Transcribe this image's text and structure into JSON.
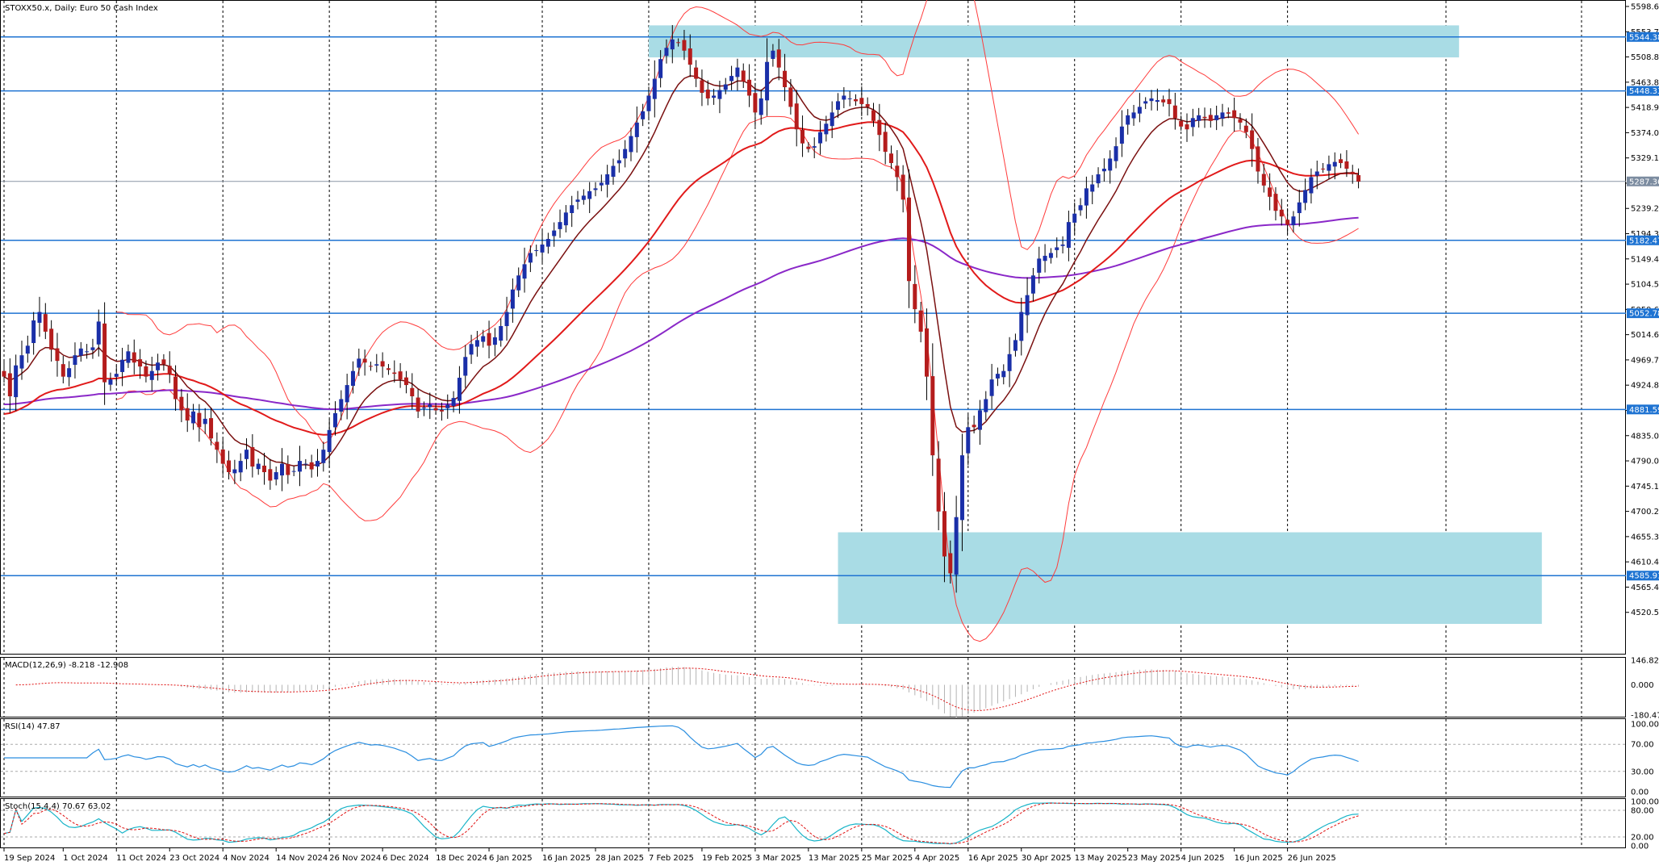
{
  "header": {
    "symbol": "STOXX50.x",
    "period": "Daily",
    "description": "Euro 50 Cash Index",
    "title": "STOXX50.x, Daily:  Euro 50 Cash Index"
  },
  "colors": {
    "bull": "#1a2fa8",
    "bear": "#b41c1c",
    "level_line": "#1e73d2",
    "zone": "#a9dce5",
    "ma_fast": "#7a1010",
    "ma_mid": "#e11a1a",
    "ma_slow": "#8a28c8",
    "bbands": "#ff3c3c",
    "macd_signal": "#e01010",
    "macd_hist": "#b4b4b4",
    "rsi": "#2a8ee0",
    "stoch_main": "#18b4c8",
    "stoch_signal": "#e01010"
  },
  "chart_data": [
    {
      "type": "candlestick",
      "title": "STOXX50.x, Daily:  Euro 50 Cash Index",
      "ylim": [
        4475.65,
        5598.65
      ],
      "y_ticks": [
        "5598.65",
        "5553.73",
        "5508.81",
        "5463.89",
        "5418.97",
        "5374.05",
        "5329.13",
        "5284.21",
        "5239.29",
        "5194.37",
        "5149.45",
        "5104.53",
        "5059.61",
        "5014.69",
        "4969.77",
        "4924.85",
        "4879.93",
        "4835.01",
        "4790.09",
        "4745.17",
        "4700.25",
        "4655.33",
        "4610.41",
        "4565.49",
        "4520.57"
      ],
      "x_labels": [
        "19 Sep 2024",
        "1 Oct 2024",
        "11 Oct 2024",
        "23 Oct 2024",
        "4 Nov 2024",
        "14 Nov 2024",
        "26 Nov 2024",
        "6 Dec 2024",
        "18 Dec 2024",
        "6 Jan 2025",
        "16 Jan 2025",
        "28 Jan 2025",
        "7 Feb 2025",
        "19 Feb 2025",
        "3 Mar 2025",
        "13 Mar 2025",
        "25 Mar 2025",
        "4 Apr 2025",
        "16 Apr 2025",
        "30 Apr 2025",
        "13 May 2025",
        "23 May 2025",
        "4 Jun 2025",
        "16 Jun 2025",
        "26 Jun 2025"
      ],
      "x_label_bars": [
        0,
        10,
        19,
        28,
        37,
        46,
        55,
        64,
        73,
        82,
        91,
        100,
        109,
        118,
        127,
        136,
        145,
        154,
        163,
        172,
        181,
        190,
        199,
        208,
        217
      ],
      "price_levels": [
        {
          "label": "5544.38",
          "value": 5544.38
        },
        {
          "label": "5448.33",
          "value": 5448.33
        },
        {
          "label": "5182.47",
          "value": 5182.47
        },
        {
          "label": "5052.78",
          "value": 5052.78
        },
        {
          "label": "4881.59",
          "value": 4881.59
        },
        {
          "label": "4585.91",
          "value": 4585.91
        }
      ],
      "current_price": {
        "label": "5287.36",
        "value": 5287.36
      },
      "zones": [
        {
          "from_bar": 109,
          "to_bar": 246,
          "from_price": 5508,
          "to_price": 5565
        },
        {
          "from_bar": 141,
          "to_bar": 260,
          "from_price": 4500,
          "to_price": 4663
        }
      ],
      "bollinger": {
        "period": 20,
        "deviations": 2
      },
      "moving_averages": [
        "fast",
        "mid",
        "slow"
      ],
      "close": [
        4940,
        4905,
        4960,
        4978,
        4995,
        5040,
        5055,
        5020,
        4988,
        4968,
        4940,
        4955,
        4978,
        4990,
        4985,
        4992,
        5038,
        4930,
        4935,
        4945,
        4970,
        4985,
        4965,
        4958,
        4940,
        4950,
        4965,
        4962,
        4945,
        4900,
        4880,
        4862,
        4878,
        4850,
        4865,
        4830,
        4810,
        4785,
        4770,
        4775,
        4790,
        4810,
        4780,
        4785,
        4770,
        4755,
        4770,
        4785,
        4765,
        4772,
        4790,
        4785,
        4775,
        4790,
        4810,
        4845,
        4875,
        4900,
        4925,
        4950,
        4972,
        4965,
        4958,
        4962,
        4958,
        4952,
        4945,
        4935,
        4925,
        4905,
        4878,
        4885,
        4890,
        4880,
        4878,
        4890,
        4902,
        4938,
        4975,
        4998,
        5005,
        5012,
        4995,
        5010,
        5030,
        5055,
        5095,
        5120,
        5140,
        5160,
        5165,
        5175,
        5185,
        5200,
        5215,
        5232,
        5245,
        5255,
        5262,
        5270,
        5275,
        5285,
        5300,
        5315,
        5325,
        5345,
        5368,
        5392,
        5412,
        5440,
        5470,
        5505,
        5525,
        5540,
        5535,
        5520,
        5495,
        5470,
        5445,
        5435,
        5440,
        5450,
        5460,
        5475,
        5490,
        5465,
        5440,
        5410,
        5435,
        5500,
        5520,
        5490,
        5455,
        5420,
        5380,
        5355,
        5345,
        5350,
        5375,
        5390,
        5410,
        5430,
        5440,
        5435,
        5430,
        5425,
        5420,
        5395,
        5370,
        5340,
        5320,
        5295,
        5255,
        5110,
        5060,
        5020,
        4940,
        4800,
        4700,
        4620,
        4590,
        4690,
        4800,
        4850,
        4850,
        4880,
        4900,
        4935,
        4945,
        4950,
        4980,
        5005,
        5055,
        5085,
        5120,
        5150,
        5155,
        5160,
        5170,
        5175,
        5215,
        5230,
        5245,
        5275,
        5282,
        5300,
        5310,
        5328,
        5350,
        5385,
        5405,
        5410,
        5420,
        5430,
        5435,
        5432,
        5428,
        5425,
        5400,
        5385,
        5380,
        5400,
        5405,
        5400,
        5395,
        5405,
        5410,
        5408,
        5400,
        5392,
        5375,
        5345,
        5305,
        5280,
        5260,
        5235,
        5225,
        5210,
        5225,
        5250,
        5272,
        5295,
        5305,
        5310,
        5318,
        5322,
        5320,
        5310,
        5300,
        5287
      ]
    },
    {
      "type": "line",
      "title": "MACD(12,26,9) -8.218 -12.908",
      "ylim": [
        -180.475,
        146.827
      ],
      "y_ticks": [
        "146.827",
        "0.000",
        "-180.475"
      ]
    },
    {
      "type": "line",
      "title": "RSI(14) 47.87",
      "ylim": [
        0,
        100
      ],
      "y_ticks": [
        "100.00",
        "70.00",
        "30.00",
        "0.00"
      ],
      "levels": [
        70,
        30
      ]
    },
    {
      "type": "line",
      "title": "Stoch(15,4,4) 70.67 63.02",
      "ylim": [
        0,
        100
      ],
      "y_ticks": [
        "100.00",
        "80.00",
        "20.00",
        "0.00"
      ],
      "levels": [
        80,
        20
      ]
    }
  ]
}
